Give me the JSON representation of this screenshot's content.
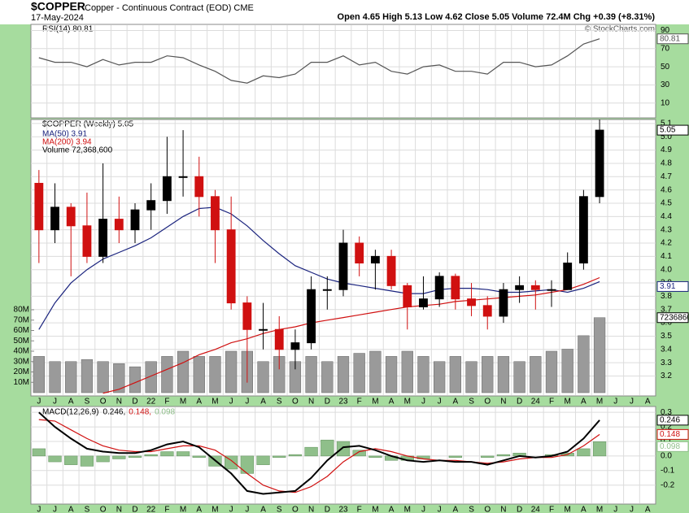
{
  "chart_data": [
    {
      "type": "line",
      "legend": "RSI(14) 80.81",
      "value_label": "80.81",
      "color": "#555555",
      "values": [
        60,
        55,
        55,
        50,
        58,
        52,
        55,
        55,
        62,
        60,
        52,
        45,
        35,
        32,
        40,
        38,
        42,
        55,
        55,
        62,
        52,
        55,
        45,
        42,
        50,
        52,
        45,
        45,
        42,
        55,
        55,
        50,
        52,
        62,
        75,
        80.81,
        null,
        null,
        null
      ],
      "ylim": [
        -6.3,
        96.7
      ],
      "yticks": [
        10,
        30,
        50,
        70,
        90
      ],
      "grid": true
    },
    {
      "type": "candlestick",
      "title": "$COPPER",
      "subtitle": "Copper - Continuous Contract (EOD) CME",
      "date": "17-May-2024",
      "quote": "Open 4.65  High 5.13  Low 4.62  Close 5.05  Volume 72.4M  Chg +0.39 (+8.31%)",
      "credit": "© StockCharts.com",
      "legend": "$COPPER (Weekly) 5.05",
      "value_label": "5.05",
      "up_color": "#000000",
      "down_color": "#d01010",
      "categories": [
        "J",
        "J",
        "A",
        "S",
        "O",
        "N",
        "D",
        "22",
        "F",
        "M",
        "A",
        "M",
        "J",
        "J",
        "A",
        "S",
        "O",
        "N",
        "D",
        "23",
        "F",
        "M",
        "A",
        "M",
        "J",
        "J",
        "A",
        "S",
        "O",
        "N",
        "D",
        "24",
        "F",
        "M",
        "A",
        "M",
        "J",
        "J",
        "A"
      ],
      "open": [
        4.65,
        4.3,
        4.47,
        4.33,
        4.1,
        4.38,
        4.3,
        4.45,
        4.52,
        4.7,
        4.7,
        4.55,
        4.3,
        3.75,
        3.55,
        3.55,
        3.4,
        3.45,
        3.85,
        3.85,
        4.2,
        4.05,
        4.1,
        3.88,
        3.72,
        3.78,
        3.95,
        3.78,
        3.73,
        3.65,
        3.85,
        3.88,
        3.85,
        3.85,
        4.05,
        4.55,
        null,
        null,
        null
      ],
      "high": [
        4.75,
        4.65,
        4.5,
        4.58,
        4.8,
        4.55,
        4.5,
        4.65,
        5.0,
        5.05,
        4.85,
        4.6,
        4.55,
        3.8,
        3.75,
        3.65,
        3.55,
        3.95,
        3.95,
        4.3,
        4.25,
        4.15,
        4.15,
        3.9,
        3.95,
        3.98,
        3.97,
        3.9,
        3.8,
        3.9,
        3.95,
        3.92,
        3.92,
        4.13,
        4.6,
        5.13,
        null,
        null,
        null
      ],
      "low": [
        4.05,
        4.2,
        3.95,
        4.05,
        4.05,
        4.2,
        4.2,
        4.3,
        4.42,
        4.55,
        4.4,
        4.05,
        3.7,
        3.15,
        3.4,
        3.25,
        3.25,
        3.4,
        3.7,
        3.8,
        3.95,
        3.85,
        3.85,
        3.55,
        3.7,
        3.72,
        3.7,
        3.65,
        3.55,
        3.6,
        3.75,
        3.7,
        3.72,
        3.85,
        4.0,
        4.5,
        null,
        null,
        null
      ],
      "close": [
        4.3,
        4.47,
        4.33,
        4.1,
        4.38,
        4.3,
        4.45,
        4.52,
        4.7,
        4.7,
        4.55,
        4.3,
        3.75,
        3.55,
        3.55,
        3.4,
        3.45,
        3.85,
        3.85,
        4.2,
        4.05,
        4.1,
        3.88,
        3.72,
        3.78,
        3.95,
        3.78,
        3.73,
        3.65,
        3.85,
        3.88,
        3.85,
        3.85,
        4.05,
        4.55,
        5.05,
        null,
        null,
        null
      ],
      "series": [
        {
          "name": "MA(50) 3.91",
          "value_label": "3.91",
          "color": "#1a237e",
          "values": [
            3.55,
            3.75,
            3.9,
            4.0,
            4.08,
            4.13,
            4.18,
            4.24,
            4.32,
            4.4,
            4.46,
            4.47,
            4.42,
            4.33,
            4.22,
            4.12,
            4.03,
            3.98,
            3.93,
            3.9,
            3.88,
            3.86,
            3.84,
            3.82,
            3.82,
            3.85,
            3.86,
            3.86,
            3.85,
            3.83,
            3.83,
            3.84,
            3.85,
            3.83,
            3.86,
            3.91,
            null,
            null,
            null
          ]
        },
        {
          "name": "MA(200) 3.94",
          "color": "#d01010",
          "values": [
            null,
            null,
            null,
            null,
            3.07,
            3.1,
            3.15,
            3.2,
            3.25,
            3.3,
            3.36,
            3.4,
            3.45,
            3.48,
            3.52,
            3.55,
            3.57,
            3.6,
            3.62,
            3.64,
            3.66,
            3.68,
            3.7,
            3.72,
            3.73,
            3.74,
            3.76,
            3.77,
            3.78,
            3.79,
            3.8,
            3.81,
            3.83,
            3.85,
            3.89,
            3.94,
            null,
            null,
            null
          ]
        }
      ],
      "volume": {
        "name": "Volume 72,368,600",
        "value_label": "72368600",
        "color": "#9a9a9a",
        "values": [
          35000000,
          30000000,
          30000000,
          32000000,
          30000000,
          28000000,
          25000000,
          30000000,
          35000000,
          40000000,
          35000000,
          35000000,
          40000000,
          40000000,
          30000000,
          35000000,
          30000000,
          35000000,
          30000000,
          35000000,
          38000000,
          40000000,
          35000000,
          40000000,
          35000000,
          30000000,
          35000000,
          30000000,
          35000000,
          35000000,
          30000000,
          35000000,
          40000000,
          42000000,
          55000000,
          72368600,
          null,
          null,
          null
        ],
        "ylim": [
          0,
          80000000
        ],
        "yticks": [
          {
            "value": 10000000,
            "label": "10M"
          },
          {
            "value": 20000000,
            "label": "20M"
          },
          {
            "value": 30000000,
            "label": "30M"
          },
          {
            "value": 40000000,
            "label": "40M"
          },
          {
            "value": 50000000,
            "label": "50M"
          },
          {
            "value": 60000000,
            "label": "60M"
          },
          {
            "value": 70000000,
            "label": "70M"
          },
          {
            "value": 80000000,
            "label": "80M"
          }
        ]
      },
      "ylim": [
        3.05,
        5.13
      ],
      "yticks": [
        3.2,
        3.3,
        3.4,
        3.5,
        3.6,
        3.7,
        3.8,
        3.9,
        {
          "value": 4,
          "label": "4.0"
        },
        4.1,
        4.2,
        4.3,
        4.4,
        4.5,
        4.6,
        4.7,
        4.8,
        4.9,
        {
          "value": 5,
          "label": "5.0"
        },
        5.1
      ],
      "grid": true
    },
    {
      "type": "line",
      "legend": "MACD(12,26,9)",
      "categories": [
        "J",
        "J",
        "A",
        "S",
        "O",
        "N",
        "D",
        "22",
        "F",
        "M",
        "A",
        "M",
        "J",
        "J",
        "A",
        "S",
        "O",
        "N",
        "D",
        "23",
        "F",
        "M",
        "A",
        "M",
        "J",
        "J",
        "A",
        "S",
        "O",
        "N",
        "D",
        "24",
        "F",
        "M",
        "A",
        "M",
        "J",
        "J",
        "A"
      ],
      "series": [
        {
          "style": "bar",
          "legend_value": "0.098",
          "value_label": "0.098",
          "color": "#8fbf8a",
          "values": [
            0.05,
            -0.04,
            -0.06,
            -0.07,
            -0.04,
            -0.02,
            -0.01,
            0.01,
            0.03,
            0.03,
            -0.01,
            -0.07,
            -0.09,
            -0.12,
            -0.06,
            -0.01,
            0.01,
            0.06,
            0.11,
            0.1,
            0.04,
            -0.01,
            -0.03,
            -0.03,
            -0.02,
            0,
            -0.01,
            0,
            -0.01,
            0.01,
            0.02,
            0,
            0.01,
            0.02,
            0.05,
            0.098,
            null,
            null,
            null
          ]
        },
        {
          "style": "line",
          "legend_value": "0.148,",
          "value_label": "0.148",
          "color": "#d01010",
          "values": [
            0.25,
            0.24,
            0.18,
            0.12,
            0.07,
            0.04,
            0.03,
            0.03,
            0.05,
            0.07,
            0.07,
            0.04,
            -0.03,
            -0.12,
            -0.2,
            -0.24,
            -0.25,
            -0.21,
            -0.14,
            -0.04,
            0.03,
            0.05,
            0.03,
            0,
            -0.02,
            -0.03,
            -0.03,
            -0.04,
            -0.05,
            -0.04,
            -0.02,
            -0.01,
            -0.01,
            0.01,
            0.07,
            0.148,
            null,
            null,
            null
          ]
        },
        {
          "style": "line",
          "legend_value": "0.246,",
          "value_label": "0.246",
          "color": "#000000",
          "values": [
            0.3,
            0.2,
            0.12,
            0.05,
            0.03,
            0.02,
            0.02,
            0.04,
            0.08,
            0.1,
            0.06,
            -0.03,
            -0.12,
            -0.24,
            -0.26,
            -0.25,
            -0.24,
            -0.15,
            -0.03,
            0.06,
            0.07,
            0.04,
            0,
            -0.03,
            -0.04,
            -0.03,
            -0.04,
            -0.04,
            -0.06,
            -0.03,
            0,
            -0.01,
            0,
            0.03,
            0.12,
            0.246,
            null,
            null,
            null
          ]
        }
      ],
      "ylim": [
        -0.33,
        0.34
      ],
      "yticks": [
        0.3,
        0.2,
        0.1,
        {
          "value": 0,
          "label": "0.0"
        },
        -0.1,
        -0.2
      ],
      "grid": true
    }
  ]
}
